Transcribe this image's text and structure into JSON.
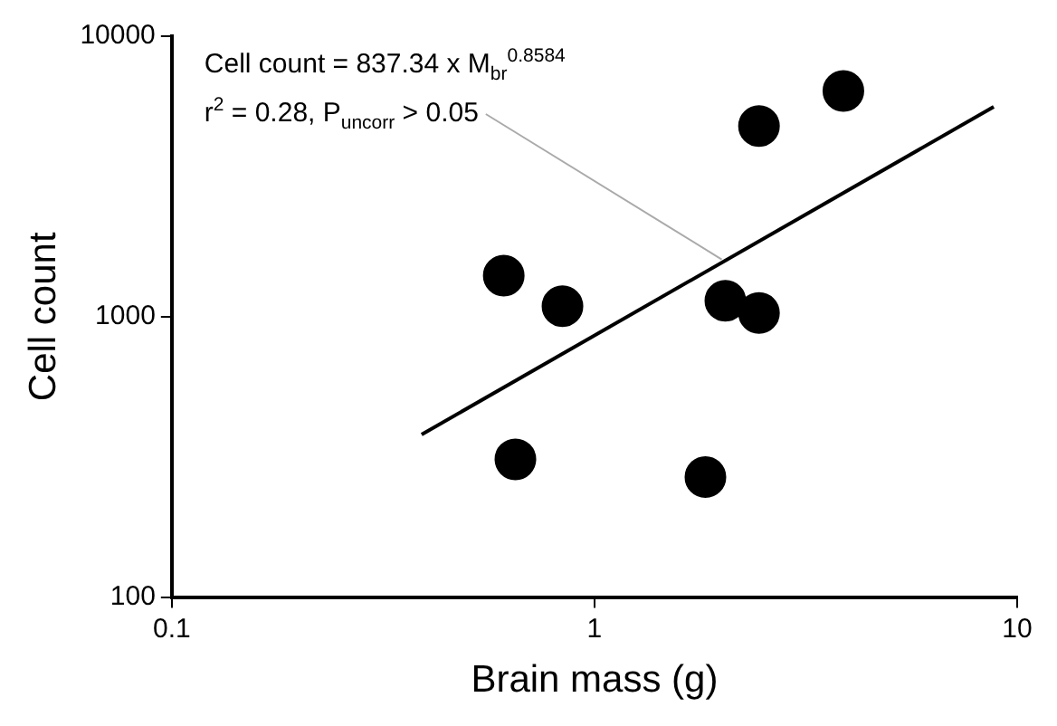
{
  "chart_data": {
    "type": "scatter",
    "xlabel": "Brain mass (g)",
    "ylabel": "Cell count",
    "log": "xy",
    "xlim": [
      0.1,
      10
    ],
    "xticks": [
      0.1,
      1,
      10
    ],
    "ylim": [
      100,
      10000
    ],
    "yticks": [
      100,
      1000,
      10000
    ],
    "grid": false,
    "legend": false,
    "marker": "circle",
    "series": [
      {
        "type": "scatter",
        "color": "#000000",
        "x": [
          0.61,
          0.84,
          2.04,
          2.45,
          2.45,
          3.88,
          0.65,
          1.83
        ],
        "values": [
          1400,
          1090,
          1140,
          1030,
          4780,
          6380,
          310,
          268
        ]
      },
      {
        "type": "line",
        "marker": "none",
        "color": "#000000",
        "x": [
          0.39,
          8.8
        ],
        "values": [
          380,
          5600
        ]
      }
    ],
    "annotations": [
      "Cell count = 837.34 x M$_{br}$$^{0.8584}$",
      {
        "text": "r$^{2}$ = 0.28, P$_{uncorr}$ > 0.05",
        "x": 2.0,
        "y": 1600
      }
    ]
  }
}
